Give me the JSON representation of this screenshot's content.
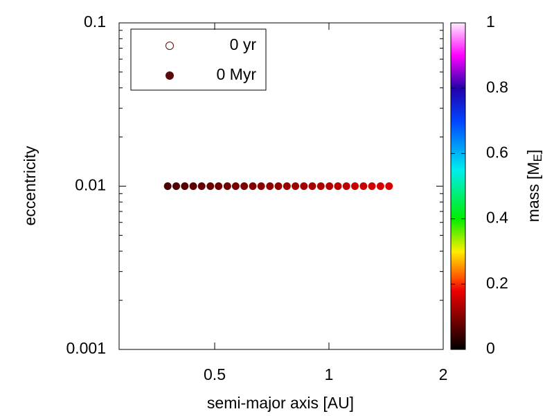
{
  "chart_data": {
    "type": "scatter",
    "xlabel": "semi-major axis [AU]",
    "ylabel": "eccentricity",
    "xscale": "log",
    "yscale": "log",
    "xlim": [
      0.28,
      2
    ],
    "ylim": [
      0.001,
      0.1
    ],
    "xticks": [
      0.5,
      1,
      2
    ],
    "yticks": [
      0.001,
      0.01,
      0.1
    ],
    "yminorticks": [
      0.002,
      0.003,
      0.004,
      0.005,
      0.006,
      0.007,
      0.008,
      0.009,
      0.02,
      0.03,
      0.04,
      0.05,
      0.06,
      0.07,
      0.08,
      0.09
    ],
    "legend_position": "upper left",
    "series": [
      {
        "name": "0 yr",
        "color": "#5a0a0a",
        "marker": "open"
      },
      {
        "name": "0 Myr",
        "color": "#5a0a0a",
        "marker": "filled",
        "x": [
          0.376,
          0.396,
          0.417,
          0.439,
          0.462,
          0.487,
          0.512,
          0.54,
          0.568,
          0.598,
          0.63,
          0.663,
          0.699,
          0.736,
          0.775,
          0.816,
          0.859,
          0.904,
          0.952,
          1.003,
          1.056,
          1.112,
          1.171,
          1.233,
          1.298,
          1.367,
          1.44
        ],
        "values": [
          0.01,
          0.01,
          0.01,
          0.01,
          0.01,
          0.01,
          0.01,
          0.01,
          0.01,
          0.01,
          0.01,
          0.01,
          0.01,
          0.01,
          0.01,
          0.01,
          0.01,
          0.01,
          0.01,
          0.01,
          0.01,
          0.01,
          0.01,
          0.01,
          0.01,
          0.01,
          0.01
        ],
        "mass": [
          0.06,
          0.064,
          0.068,
          0.072,
          0.076,
          0.08,
          0.084,
          0.088,
          0.092,
          0.096,
          0.1,
          0.104,
          0.108,
          0.112,
          0.116,
          0.12,
          0.124,
          0.128,
          0.132,
          0.136,
          0.14,
          0.144,
          0.148,
          0.152,
          0.156,
          0.16,
          0.164
        ]
      }
    ],
    "colorbar": {
      "label": {
        "text": "mass [M",
        "subscript": "E",
        "suffix": "]"
      },
      "lim": [
        0,
        1
      ],
      "ticks": [
        0,
        0.2,
        0.4,
        0.6,
        0.8,
        1
      ],
      "colormap": [
        [
          0,
          "#000000"
        ],
        [
          0.18,
          "#ee0000"
        ],
        [
          0.22,
          "#ff5500"
        ],
        [
          0.3,
          "#ffee00"
        ],
        [
          0.4,
          "#00ee00"
        ],
        [
          0.55,
          "#00eeee"
        ],
        [
          0.7,
          "#0044ff"
        ],
        [
          0.8,
          "#2200aa"
        ],
        [
          0.9,
          "#ff00ff"
        ],
        [
          1,
          "#ffeeff"
        ]
      ]
    }
  }
}
